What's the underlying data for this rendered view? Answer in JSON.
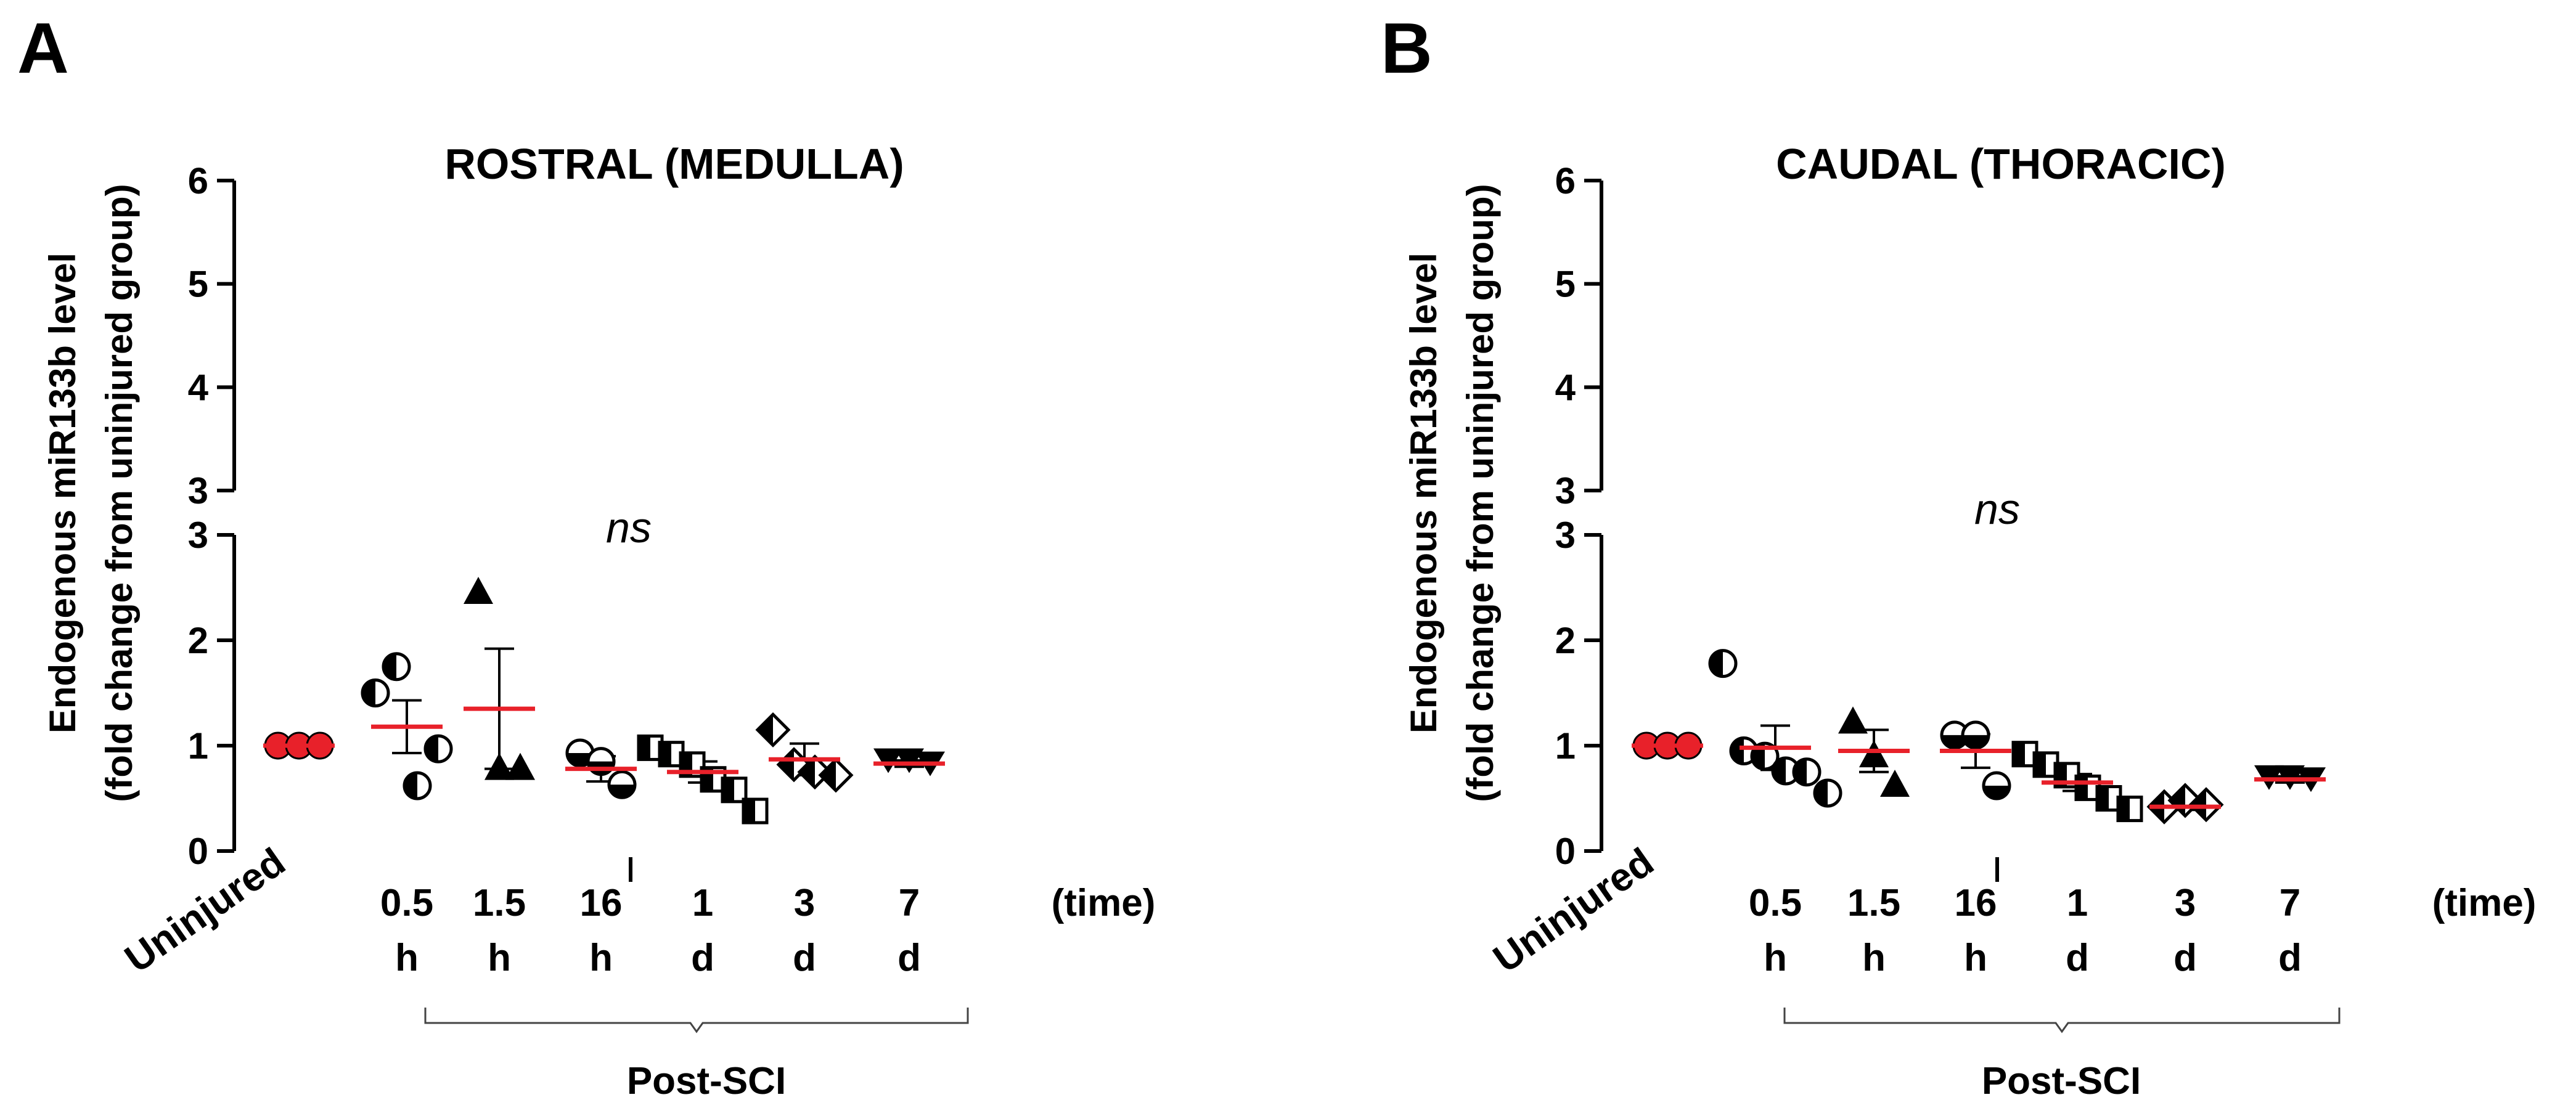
{
  "colors": {
    "axis": "#000000",
    "mean_line": "#e8212a",
    "uninjured_marker": "#e8212a"
  },
  "chart_data": [
    {
      "type": "scatter",
      "panel_label": "A",
      "title": "ROSTRAL (MEDULLA)",
      "ylabel_line1": "Endogenous miR133b level",
      "ylabel_line2": "(fold change from uninjured group)",
      "xlabel_suffix": "(time)",
      "group_bracket_label": "Post-SCI",
      "significance": "ns",
      "y_axis": {
        "lower_segment": [
          0,
          3
        ],
        "upper_segment": [
          3,
          6
        ],
        "lower_ticks": [
          "0",
          "1",
          "2",
          "3"
        ],
        "upper_ticks": [
          "3",
          "4",
          "5",
          "6"
        ]
      },
      "groups": [
        {
          "label": "Uninjured",
          "unit": "",
          "mean": 1.0,
          "sem": null,
          "marker": "circle-red",
          "values": [
            1.0,
            1.0,
            1.0
          ]
        },
        {
          "label": "0.5",
          "unit": "h",
          "mean": 1.18,
          "sem": 0.25,
          "marker": "circle-half-left",
          "values": [
            1.5,
            1.75,
            0.62,
            0.97
          ]
        },
        {
          "label": "1.5",
          "unit": "h",
          "mean": 1.35,
          "sem": 0.57,
          "marker": "triangle-up",
          "values": [
            2.45,
            0.78,
            0.78
          ]
        },
        {
          "label": "16",
          "unit": "h",
          "mean": 0.78,
          "sem": 0.12,
          "marker": "circle-half-top",
          "values": [
            0.93,
            0.85,
            0.63
          ]
        },
        {
          "label": "1",
          "unit": "d",
          "mean": 0.75,
          "sem": 0.1,
          "marker": "square-half",
          "values": [
            0.98,
            0.92,
            0.82,
            0.68,
            0.58,
            0.38
          ]
        },
        {
          "label": "3",
          "unit": "d",
          "mean": 0.87,
          "sem": 0.15,
          "marker": "diamond-half",
          "values": [
            1.15,
            0.82,
            0.75,
            0.72
          ]
        },
        {
          "label": "7",
          "unit": "d",
          "mean": 0.83,
          "sem": 0.03,
          "marker": "triangle-down",
          "values": [
            0.88,
            0.88,
            0.85
          ]
        }
      ]
    },
    {
      "type": "scatter",
      "panel_label": "B",
      "title": "CAUDAL (THORACIC)",
      "ylabel_line1": "Endogenous miR133b level",
      "ylabel_line2": "(fold change from uninjured group)",
      "xlabel_suffix": "(time)",
      "group_bracket_label": "Post-SCI",
      "significance": "ns",
      "y_axis": {
        "lower_segment": [
          0,
          3
        ],
        "upper_segment": [
          3,
          6
        ],
        "lower_ticks": [
          "0",
          "1",
          "2",
          "3"
        ],
        "upper_ticks": [
          "3",
          "4",
          "5",
          "6"
        ]
      },
      "groups": [
        {
          "label": "Uninjured",
          "unit": "",
          "mean": 1.0,
          "sem": null,
          "marker": "circle-red",
          "values": [
            1.0,
            1.0,
            1.0
          ]
        },
        {
          "label": "0.5",
          "unit": "h",
          "mean": 0.98,
          "sem": 0.21,
          "marker": "circle-half-left",
          "values": [
            1.78,
            0.95,
            0.9,
            0.76,
            0.75,
            0.55
          ]
        },
        {
          "label": "1.5",
          "unit": "h",
          "mean": 0.95,
          "sem": 0.2,
          "marker": "triangle-up",
          "values": [
            1.22,
            0.9,
            0.62
          ]
        },
        {
          "label": "16",
          "unit": "h",
          "mean": 0.95,
          "sem": 0.16,
          "marker": "circle-half-top",
          "values": [
            1.1,
            1.1,
            0.62
          ]
        },
        {
          "label": "1",
          "unit": "d",
          "mean": 0.65,
          "sem": 0.08,
          "marker": "square-half",
          "values": [
            0.92,
            0.82,
            0.72,
            0.6,
            0.5,
            0.4
          ]
        },
        {
          "label": "3",
          "unit": "d",
          "mean": 0.42,
          "sem": 0.03,
          "marker": "diamond-half",
          "values": [
            0.42,
            0.48,
            0.44
          ]
        },
        {
          "label": "7",
          "unit": "d",
          "mean": 0.68,
          "sem": 0.03,
          "marker": "triangle-down",
          "values": [
            0.72,
            0.72,
            0.7
          ]
        }
      ]
    }
  ]
}
